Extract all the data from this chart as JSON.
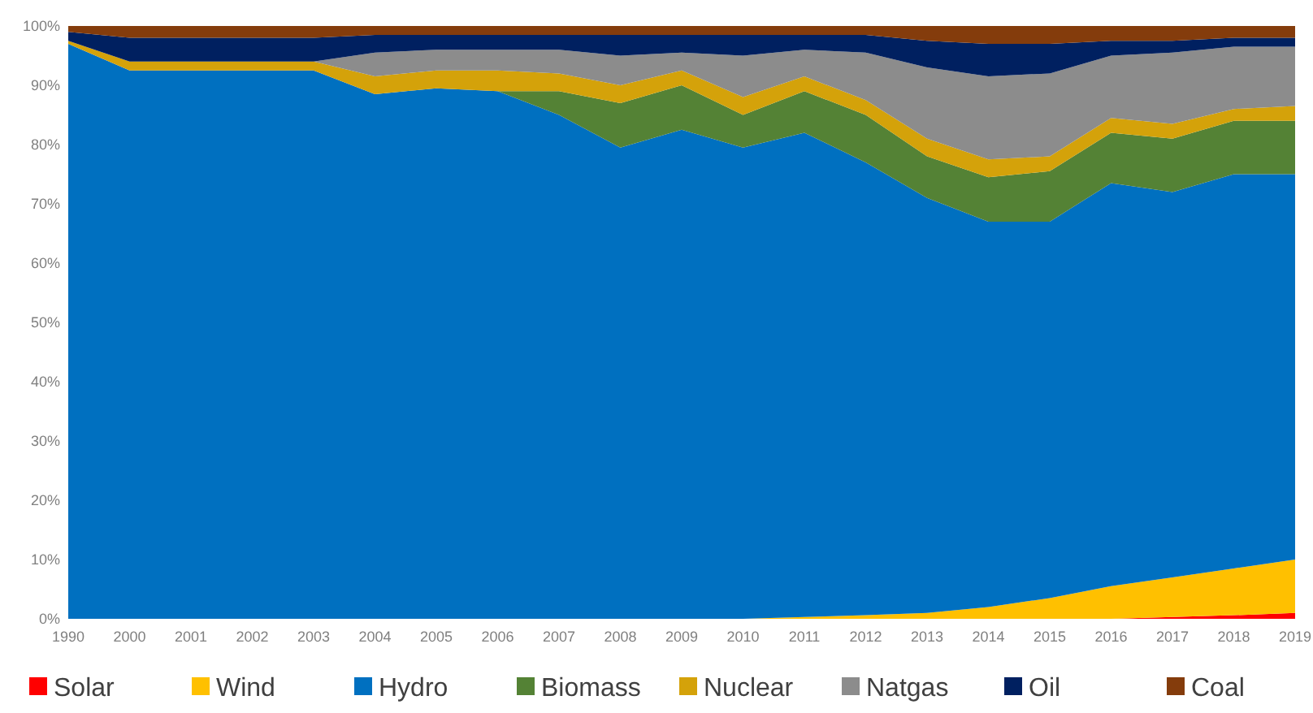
{
  "chart_data": {
    "type": "area",
    "stacked": true,
    "legend": "bottom",
    "grid": false,
    "categories": [
      "1990",
      "2000",
      "2001",
      "2002",
      "2003",
      "2004",
      "2005",
      "2006",
      "2007",
      "2008",
      "2009",
      "2010",
      "2011",
      "2012",
      "2013",
      "2014",
      "2015",
      "2016",
      "2017",
      "2018",
      "2019"
    ],
    "ylim": [
      0,
      100
    ],
    "yticks": [
      {
        "value": 0,
        "label": "0%"
      },
      {
        "value": 10,
        "label": "10%"
      },
      {
        "value": 20,
        "label": "20%"
      },
      {
        "value": 30,
        "label": "30%"
      },
      {
        "value": 40,
        "label": "40%"
      },
      {
        "value": 50,
        "label": "50%"
      },
      {
        "value": 60,
        "label": "60%"
      },
      {
        "value": 70,
        "label": "70%"
      },
      {
        "value": 80,
        "label": "80%"
      },
      {
        "value": 90,
        "label": "90%"
      },
      {
        "value": 100,
        "label": "100%"
      }
    ],
    "series": [
      {
        "name": "Solar",
        "color": "#ff0000",
        "values": [
          0,
          0,
          0,
          0,
          0,
          0,
          0,
          0,
          0,
          0,
          0,
          0,
          0,
          0,
          0,
          0,
          0,
          0,
          0.3,
          0.6,
          1.0
        ]
      },
      {
        "name": "Wind",
        "color": "#ffc000",
        "values": [
          0,
          0,
          0,
          0,
          0,
          0,
          0,
          0,
          0,
          0,
          0,
          0,
          0.3,
          0.6,
          1.0,
          2,
          3.5,
          5.5,
          6.7,
          7.9,
          9
        ]
      },
      {
        "name": "Hydro",
        "color": "#0070c0",
        "values": [
          97,
          92.5,
          92.5,
          92.5,
          92.5,
          88.5,
          89.5,
          89,
          85,
          79.5,
          82.5,
          79.5,
          81.7,
          76.4,
          70,
          65,
          63.5,
          68,
          65,
          66.5,
          65
        ]
      },
      {
        "name": "Biomass",
        "color": "#548235",
        "values": [
          0,
          0,
          0,
          0,
          0,
          0,
          0,
          0,
          4,
          7.5,
          7.5,
          5.5,
          7,
          8,
          7,
          7.5,
          8.5,
          8.5,
          9,
          9,
          9
        ]
      },
      {
        "name": "Nuclear",
        "color": "#d4a20a",
        "values": [
          0.5,
          1.5,
          1.5,
          1.5,
          1.5,
          3,
          3,
          3.5,
          3,
          3,
          2.5,
          3,
          2.5,
          2.5,
          3,
          3,
          2.5,
          2.5,
          2.5,
          2,
          2.5
        ]
      },
      {
        "name": "Natgas",
        "color": "#8c8c8c",
        "values": [
          0,
          0,
          0,
          0,
          0,
          4,
          3.5,
          3.5,
          4,
          5,
          3,
          7,
          4.5,
          8,
          12,
          14,
          14,
          10.5,
          12,
          10.5,
          10
        ]
      },
      {
        "name": "Oil",
        "color": "#002060",
        "values": [
          1.5,
          4,
          4,
          4,
          4,
          3,
          2.5,
          2.5,
          2.5,
          3.5,
          3,
          3.5,
          2.5,
          3,
          4.5,
          5.5,
          5,
          2.5,
          2,
          1.5,
          1.5
        ]
      },
      {
        "name": "Coal",
        "color": "#843c0c",
        "values": [
          1,
          2,
          2,
          2,
          2,
          1.5,
          1.5,
          1.5,
          1.5,
          1.5,
          1.5,
          1.5,
          1.5,
          1.5,
          2.5,
          3,
          3,
          2.5,
          2.5,
          2,
          2
        ]
      }
    ]
  }
}
